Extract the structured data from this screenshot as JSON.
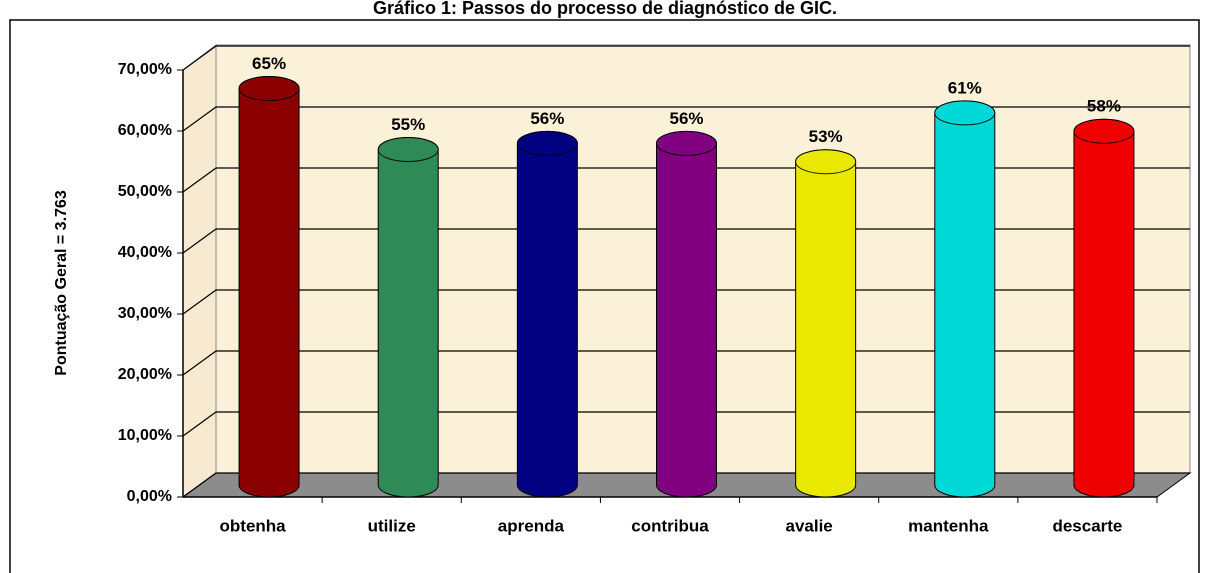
{
  "chart_data": {
    "type": "bar",
    "title": "Gráfico 1: Passos do processo de diagnóstico de GIC.",
    "y_label": "Pontuação Geral = 3.763",
    "categories": [
      "obtenha",
      "utilize",
      "aprenda",
      "contribua",
      "avalie",
      "mantenha",
      "descarte"
    ],
    "values": [
      65,
      55,
      56,
      56,
      53,
      61,
      58
    ],
    "value_labels": [
      "65%",
      "55%",
      "56%",
      "56%",
      "53%",
      "61%",
      "58%"
    ],
    "colors": [
      "#8b0000",
      "#2e8b57",
      "#000080",
      "#800080",
      "#e8e800",
      "#00d8d8",
      "#ee0000"
    ],
    "ylim": [
      0,
      70
    ],
    "yticks": [
      {
        "value": 0,
        "label": "0,00%"
      },
      {
        "value": 10,
        "label": "10,00%"
      },
      {
        "value": 20,
        "label": "20,00%"
      },
      {
        "value": 30,
        "label": "30,00%"
      },
      {
        "value": 40,
        "label": "40,00%"
      },
      {
        "value": 50,
        "label": "50,00%"
      },
      {
        "value": 60,
        "label": "60,00%"
      },
      {
        "value": 70,
        "label": "70,00%"
      }
    ],
    "grid": true
  }
}
